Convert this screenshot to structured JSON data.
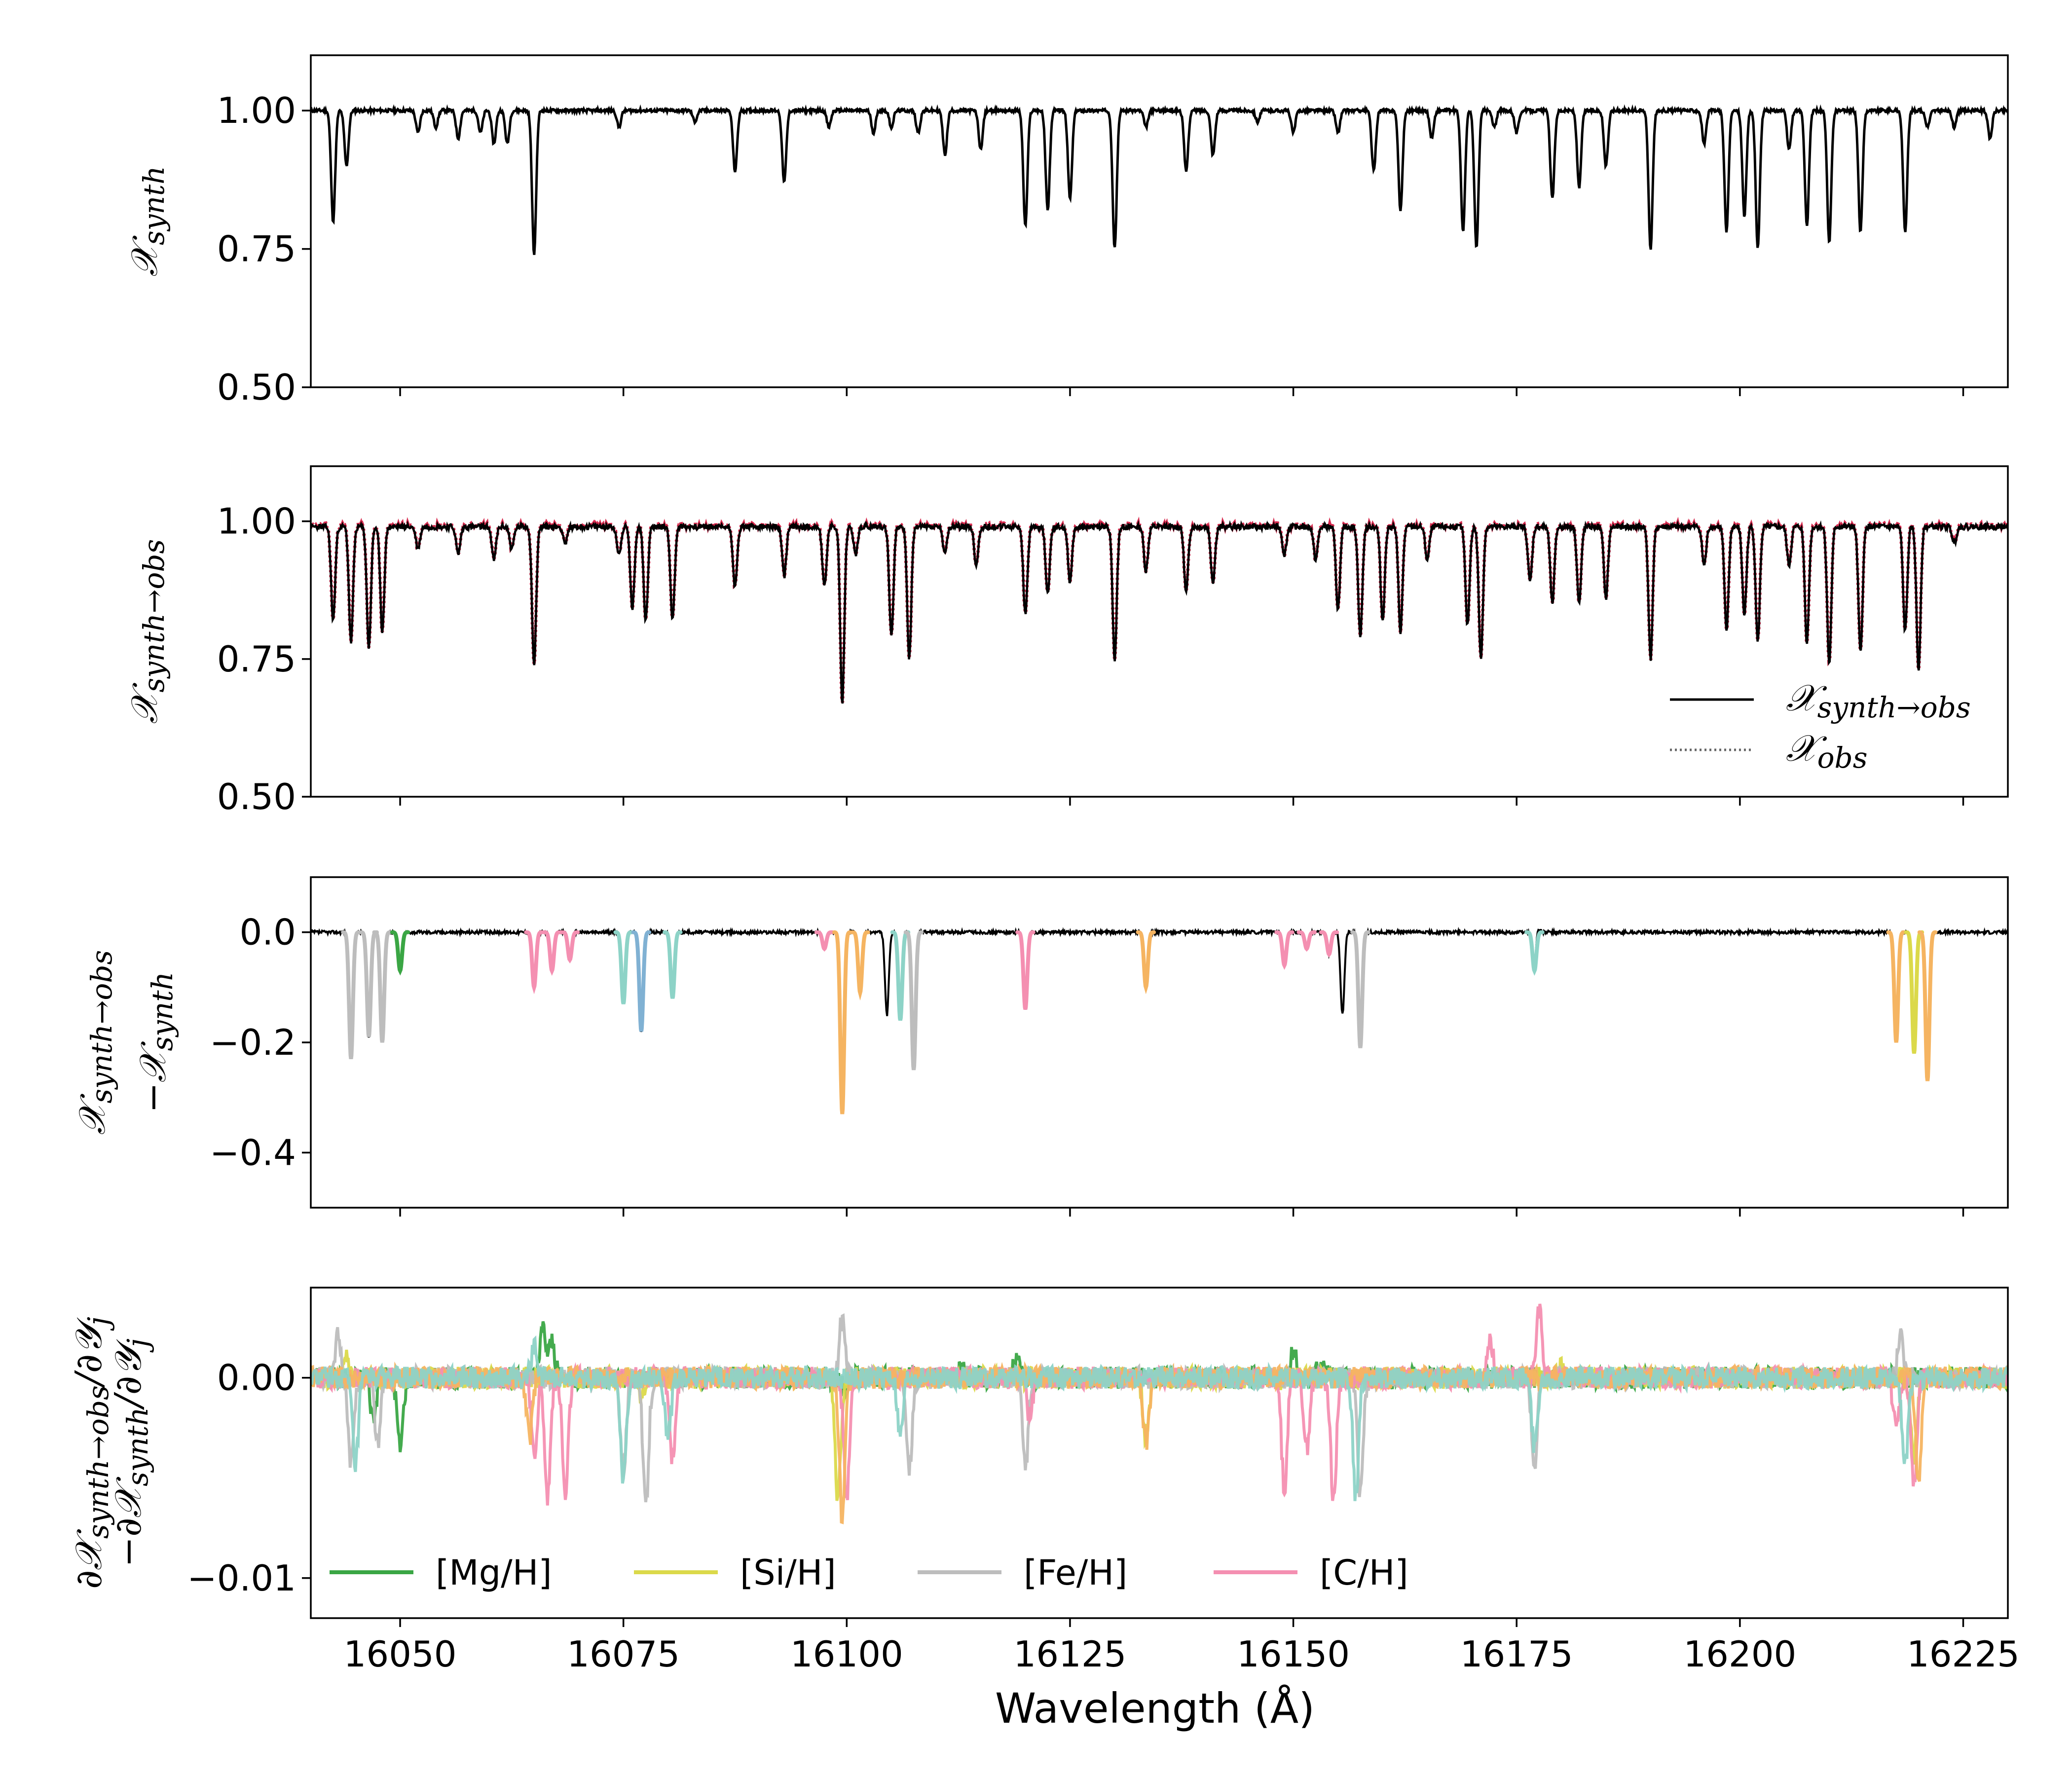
{
  "figure": {
    "xlabel": "Wavelength (Å)",
    "x_tick_labels": [
      "16050",
      "16075",
      "16100",
      "16125",
      "16150",
      "16175",
      "16200",
      "16225"
    ]
  },
  "chart_data": [
    {
      "type": "line",
      "panel": "synthetic spectrum",
      "ylabel": {
        "symbol": "𝒳",
        "sub": "synth"
      },
      "xlim": [
        16040,
        16230
      ],
      "ylim": [
        0.5,
        1.1
      ],
      "x_ticks": [
        16050,
        16075,
        16100,
        16125,
        16150,
        16175,
        16200,
        16225
      ],
      "y_ticks": [
        0.5,
        0.75,
        1.0
      ],
      "y_tick_labels": [
        "0.50",
        "0.75",
        "1.00"
      ],
      "continuum": 1.0,
      "lines": [
        [
          16042.5,
          0.8
        ],
        [
          16044.0,
          0.9
        ],
        [
          16052.0,
          0.96
        ],
        [
          16054.0,
          0.97
        ],
        [
          16056.5,
          0.95
        ],
        [
          16059.0,
          0.96
        ],
        [
          16060.5,
          0.94
        ],
        [
          16062.0,
          0.94
        ],
        [
          16065.0,
          0.74
        ],
        [
          16074.5,
          0.97
        ],
        [
          16083.0,
          0.98
        ],
        [
          16087.5,
          0.89
        ],
        [
          16093.0,
          0.87
        ],
        [
          16098.0,
          0.97
        ],
        [
          16103.0,
          0.96
        ],
        [
          16105.0,
          0.97
        ],
        [
          16108.0,
          0.96
        ],
        [
          16111.0,
          0.92
        ],
        [
          16115.0,
          0.93
        ],
        [
          16120.0,
          0.79
        ],
        [
          16122.5,
          0.82
        ],
        [
          16125.0,
          0.84
        ],
        [
          16130.0,
          0.75
        ],
        [
          16133.5,
          0.97
        ],
        [
          16138.0,
          0.89
        ],
        [
          16141.0,
          0.92
        ],
        [
          16146.0,
          0.98
        ],
        [
          16150.0,
          0.96
        ],
        [
          16155.0,
          0.96
        ],
        [
          16159.0,
          0.89
        ],
        [
          16162.0,
          0.82
        ],
        [
          16165.5,
          0.95
        ],
        [
          16169.0,
          0.78
        ],
        [
          16170.5,
          0.75
        ],
        [
          16172.5,
          0.97
        ],
        [
          16175.0,
          0.96
        ],
        [
          16179.0,
          0.84
        ],
        [
          16182.0,
          0.86
        ],
        [
          16185.0,
          0.9
        ],
        [
          16190.0,
          0.75
        ],
        [
          16196.0,
          0.94
        ],
        [
          16198.5,
          0.78
        ],
        [
          16200.5,
          0.81
        ],
        [
          16202.0,
          0.75
        ],
        [
          16205.5,
          0.93
        ],
        [
          16207.5,
          0.79
        ],
        [
          16210.0,
          0.76
        ],
        [
          16213.5,
          0.78
        ],
        [
          16218.5,
          0.78
        ],
        [
          16221.0,
          0.97
        ],
        [
          16224.0,
          0.97
        ],
        [
          16228.0,
          0.95
        ]
      ],
      "series": [
        {
          "color": "#000000",
          "style": "solid"
        }
      ]
    },
    {
      "type": "line",
      "panel": "synthetic to observed and observed spectra",
      "ylabel": {
        "symbol": "𝒳",
        "sub": "synth→obs"
      },
      "xlim": [
        16040,
        16230
      ],
      "ylim": [
        0.5,
        1.1
      ],
      "x_ticks": [
        16050,
        16075,
        16100,
        16125,
        16150,
        16175,
        16200,
        16225
      ],
      "y_ticks": [
        0.5,
        0.75,
        1.0
      ],
      "y_tick_labels": [
        "0.50",
        "0.75",
        "1.00"
      ],
      "continuum": 0.99,
      "lines": [
        [
          16042.5,
          0.82
        ],
        [
          16044.5,
          0.78
        ],
        [
          16046.5,
          0.77
        ],
        [
          16048.0,
          0.8
        ],
        [
          16052.0,
          0.95
        ],
        [
          16056.5,
          0.94
        ],
        [
          16060.5,
          0.93
        ],
        [
          16062.5,
          0.95
        ],
        [
          16065.0,
          0.74
        ],
        [
          16068.5,
          0.96
        ],
        [
          16074.5,
          0.94
        ],
        [
          16076.0,
          0.84
        ],
        [
          16077.5,
          0.82
        ],
        [
          16080.5,
          0.82
        ],
        [
          16087.5,
          0.88
        ],
        [
          16093.0,
          0.9
        ],
        [
          16097.5,
          0.88
        ],
        [
          16099.5,
          0.67
        ],
        [
          16101.0,
          0.94
        ],
        [
          16105.0,
          0.79
        ],
        [
          16107.0,
          0.75
        ],
        [
          16111.0,
          0.94
        ],
        [
          16114.5,
          0.92
        ],
        [
          16120.0,
          0.83
        ],
        [
          16122.5,
          0.87
        ],
        [
          16125.0,
          0.89
        ],
        [
          16130.0,
          0.75
        ],
        [
          16133.5,
          0.91
        ],
        [
          16138.0,
          0.87
        ],
        [
          16141.0,
          0.89
        ],
        [
          16149.0,
          0.94
        ],
        [
          16152.5,
          0.93
        ],
        [
          16155.0,
          0.84
        ],
        [
          16157.5,
          0.79
        ],
        [
          16160.0,
          0.82
        ],
        [
          16162.0,
          0.8
        ],
        [
          16165.0,
          0.93
        ],
        [
          16169.5,
          0.81
        ],
        [
          16171.0,
          0.75
        ],
        [
          16176.5,
          0.89
        ],
        [
          16179.0,
          0.85
        ],
        [
          16182.0,
          0.85
        ],
        [
          16185.0,
          0.86
        ],
        [
          16190.0,
          0.75
        ],
        [
          16196.0,
          0.92
        ],
        [
          16198.5,
          0.8
        ],
        [
          16200.5,
          0.83
        ],
        [
          16202.0,
          0.78
        ],
        [
          16205.5,
          0.92
        ],
        [
          16207.5,
          0.78
        ],
        [
          16210.0,
          0.74
        ],
        [
          16213.5,
          0.76
        ],
        [
          16218.5,
          0.8
        ],
        [
          16220.0,
          0.73
        ],
        [
          16224.0,
          0.96
        ]
      ],
      "series": [
        {
          "name_symbol": "𝒳",
          "name_sub": "synth→obs",
          "color": "#000000",
          "style": "solid"
        },
        {
          "name_symbol": "𝒳",
          "name_sub": "obs",
          "color": "#d62a4e",
          "style": "dotted"
        }
      ],
      "legend": "lower-right"
    },
    {
      "type": "line",
      "panel": "difference spectrum",
      "ylabel": {
        "line1_symbol": "𝒳",
        "line1_sub": "synth→obs",
        "line2_prefix": "−",
        "line2_symbol": "𝒳",
        "line2_sub": "synth"
      },
      "xlim": [
        16040,
        16230
      ],
      "ylim": [
        -0.5,
        0.1
      ],
      "x_ticks": [
        16050,
        16075,
        16100,
        16125,
        16150,
        16175,
        16200,
        16225
      ],
      "y_ticks": [
        -0.4,
        -0.2,
        0.0
      ],
      "y_tick_labels": [
        "−0.4",
        "−0.2",
        "0.0"
      ],
      "lines": [
        [
          16044.5,
          -0.23,
          "#bdbdbd"
        ],
        [
          16046.5,
          -0.19,
          "#bdbdbd"
        ],
        [
          16048.0,
          -0.2,
          "#bdbdbd"
        ],
        [
          16050.0,
          -0.07,
          "#3aa644"
        ],
        [
          16065.0,
          -0.1,
          "#f48fb1"
        ],
        [
          16067.0,
          -0.07,
          "#f48fb1"
        ],
        [
          16069.0,
          -0.05,
          "#f48fb1"
        ],
        [
          16075.0,
          -0.13,
          "#8dd3c7"
        ],
        [
          16077.0,
          -0.18,
          "#80b1d3"
        ],
        [
          16080.5,
          -0.12,
          "#8dd3c7"
        ],
        [
          16097.5,
          -0.03,
          "#f48fb1"
        ],
        [
          16099.5,
          -0.33,
          "#f5b461"
        ],
        [
          16101.5,
          -0.11,
          "#f5b461"
        ],
        [
          16104.5,
          -0.15,
          "#000000"
        ],
        [
          16106.0,
          -0.16,
          "#8dd3c7"
        ],
        [
          16107.5,
          -0.25,
          "#bdbdbd"
        ],
        [
          16120.0,
          -0.14,
          "#f48fb1"
        ],
        [
          16133.5,
          -0.1,
          "#f5b461"
        ],
        [
          16149.0,
          -0.06,
          "#f48fb1"
        ],
        [
          16151.5,
          -0.03,
          "#f48fb1"
        ],
        [
          16154.0,
          -0.04,
          "#f48fb1"
        ],
        [
          16155.5,
          -0.15,
          "#000000"
        ],
        [
          16157.5,
          -0.21,
          "#bdbdbd"
        ],
        [
          16177.0,
          -0.07,
          "#8dd3c7"
        ],
        [
          16217.5,
          -0.2,
          "#f5b461"
        ],
        [
          16219.5,
          -0.22,
          "#dbd94a"
        ],
        [
          16221.0,
          -0.27,
          "#f5b461"
        ]
      ],
      "bumps": [
        [
          16177.2,
          0.02
        ]
      ],
      "series": [
        {
          "color": "#000000",
          "style": "solid"
        }
      ]
    },
    {
      "type": "line",
      "panel": "gradient differences",
      "ylabel": {
        "line1_prefix": "∂",
        "line1_symbol": "𝒳",
        "line1_sub": "synth→obs",
        "line1_suffix": "/∂𝒴",
        "line1_sub2": "j",
        "line2_prefix": "−∂",
        "line2_symbol": "𝒳",
        "line2_sub": "synth",
        "line2_suffix": "/∂𝒴",
        "line2_sub2": "j"
      },
      "xlim": [
        16040,
        16230
      ],
      "ylim": [
        -0.012,
        0.0045
      ],
      "x_ticks": [
        16050,
        16075,
        16100,
        16125,
        16150,
        16175,
        16200,
        16225
      ],
      "y_ticks": [
        -0.01,
        0.0
      ],
      "y_tick_labels": [
        "−0.01",
        "0.00"
      ],
      "series": [
        {
          "name": "[Mg/H]",
          "color": "#3aa644",
          "features": [
            [
              16050.0,
              -0.0035
            ],
            [
              16047.0,
              -0.002
            ],
            [
              16066.0,
              0.0025
            ],
            [
              16067.0,
              0.0018
            ],
            [
              16100.0,
              -0.001
            ],
            [
              16113.0,
              0.0006
            ],
            [
              16119.0,
              0.0009
            ],
            [
              16150.0,
              0.0014
            ],
            [
              16153.0,
              0.0007
            ]
          ]
        },
        {
          "name": "[Si/H]",
          "color": "#dbd94a",
          "features": [
            [
              16099.0,
              -0.006
            ],
            [
              16133.5,
              -0.003
            ],
            [
              16219.5,
              -0.004
            ],
            [
              16044.0,
              0.001
            ],
            [
              16077.0,
              -0.001
            ],
            [
              16180.0,
              0.0005
            ]
          ]
        },
        {
          "name": "[Fe/H]",
          "color": "#bdbdbd",
          "features": [
            [
              16044.5,
              -0.0045
            ],
            [
              16047.5,
              -0.0035
            ],
            [
              16077.5,
              -0.0065
            ],
            [
              16075.0,
              -0.0045
            ],
            [
              16099.5,
              0.003
            ],
            [
              16107.0,
              -0.0045
            ],
            [
              16120.0,
              -0.0045
            ],
            [
              16157.5,
              -0.006
            ],
            [
              16177.0,
              -0.0045
            ],
            [
              16218.0,
              0.0022
            ],
            [
              16043.0,
              0.002
            ]
          ]
        },
        {
          "name": "[C/H]",
          "color": "#f48fb1",
          "features": [
            [
              16065.0,
              -0.004
            ],
            [
              16066.5,
              -0.006
            ],
            [
              16068.5,
              -0.006
            ],
            [
              16080.5,
              -0.004
            ],
            [
              16100.0,
              -0.006
            ],
            [
              16120.5,
              -0.002
            ],
            [
              16149.0,
              -0.0055
            ],
            [
              16151.5,
              -0.0035
            ],
            [
              16154.5,
              -0.006
            ],
            [
              16177.5,
              0.0035
            ],
            [
              16172.0,
              0.002
            ],
            [
              16219.5,
              -0.0055
            ],
            [
              16217.5,
              -0.0025
            ]
          ]
        },
        {
          "name": "",
          "color": "#f5b461",
          "features": [
            [
              16064.5,
              -0.003
            ],
            [
              16099.5,
              -0.007
            ],
            [
              16133.5,
              -0.0033
            ],
            [
              16220.0,
              -0.005
            ]
          ]
        },
        {
          "name": "",
          "color": "#8dd3c7",
          "features": [
            [
              16045.0,
              -0.0045
            ],
            [
              16075.0,
              -0.005
            ],
            [
              16080.0,
              -0.003
            ],
            [
              16106.0,
              -0.003
            ],
            [
              16157.0,
              -0.006
            ],
            [
              16177.0,
              -0.0035
            ],
            [
              16218.5,
              -0.0045
            ],
            [
              16065.0,
              0.0015
            ]
          ]
        }
      ],
      "legend": "bottom, single row"
    }
  ]
}
